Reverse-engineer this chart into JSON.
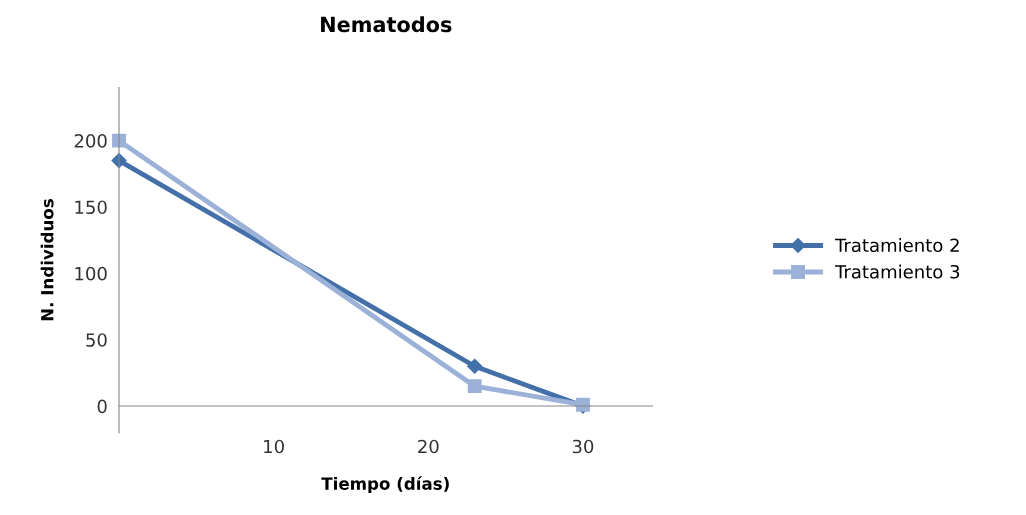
{
  "chart_data": {
    "type": "line",
    "title": "Nematodos",
    "xlabel": "Tiempo (días)",
    "ylabel": "N. Individuos",
    "x": [
      0,
      23,
      30
    ],
    "series": [
      {
        "name": "Tratamiento 2",
        "color": "#4470aa",
        "values": [
          185,
          30,
          0
        ],
        "marker": "diamond"
      },
      {
        "name": "Tratamiento 3",
        "color": "#9bb1d8",
        "values": [
          200,
          15,
          1
        ],
        "marker": "square"
      }
    ],
    "xlim": [
      0,
      34.5
    ],
    "ylim": [
      -20,
      240
    ],
    "xticks": [
      10,
      20,
      30
    ],
    "yticks": [
      0,
      50,
      100,
      150,
      200
    ],
    "grid": false,
    "legend": "right"
  }
}
